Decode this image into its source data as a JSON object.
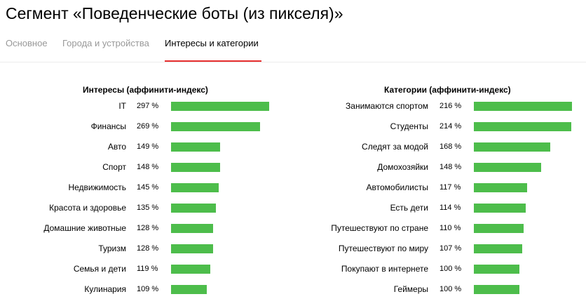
{
  "page": {
    "title": "Сегмент «Поведенческие боты (из пикселя)»"
  },
  "tabs": [
    {
      "label": "Основное",
      "active": false
    },
    {
      "label": "Города и устройства",
      "active": false
    },
    {
      "label": "Интересы и категории",
      "active": true
    }
  ],
  "colors": {
    "bar": "#4dbd4b",
    "active_tab_underline": "#e62e2e",
    "inactive_tab_text": "#999999"
  },
  "interests": {
    "heading": "Интересы (аффинити-индекс)",
    "rows": [
      {
        "label": "IT",
        "value": "297 %",
        "index": 297
      },
      {
        "label": "Финансы",
        "value": "269 %",
        "index": 269
      },
      {
        "label": "Авто",
        "value": "149 %",
        "index": 149
      },
      {
        "label": "Спорт",
        "value": "148 %",
        "index": 148
      },
      {
        "label": "Недвижимость",
        "value": "145 %",
        "index": 145
      },
      {
        "label": "Красота и здоровье",
        "value": "135 %",
        "index": 135
      },
      {
        "label": "Домашние животные",
        "value": "128 %",
        "index": 128
      },
      {
        "label": "Туризм",
        "value": "128 %",
        "index": 128
      },
      {
        "label": "Семья и дети",
        "value": "119 %",
        "index": 119
      },
      {
        "label": "Кулинария",
        "value": "109 %",
        "index": 109
      }
    ]
  },
  "categories": {
    "heading": "Категории (аффинити-индекс)",
    "rows": [
      {
        "label": "Занимаются спортом",
        "value": "216 %",
        "index": 216
      },
      {
        "label": "Студенты",
        "value": "214 %",
        "index": 214
      },
      {
        "label": "Следят за модой",
        "value": "168 %",
        "index": 168
      },
      {
        "label": "Домохозяйки",
        "value": "148 %",
        "index": 148
      },
      {
        "label": "Автомобилисты",
        "value": "117 %",
        "index": 117
      },
      {
        "label": "Есть дети",
        "value": "114 %",
        "index": 114
      },
      {
        "label": "Путешествуют по стране",
        "value": "110 %",
        "index": 110
      },
      {
        "label": "Путешествуют по миру",
        "value": "107 %",
        "index": 107
      },
      {
        "label": "Покупают в интернете",
        "value": "100 %",
        "index": 100
      },
      {
        "label": "Геймеры",
        "value": "100 %",
        "index": 100
      }
    ]
  }
}
